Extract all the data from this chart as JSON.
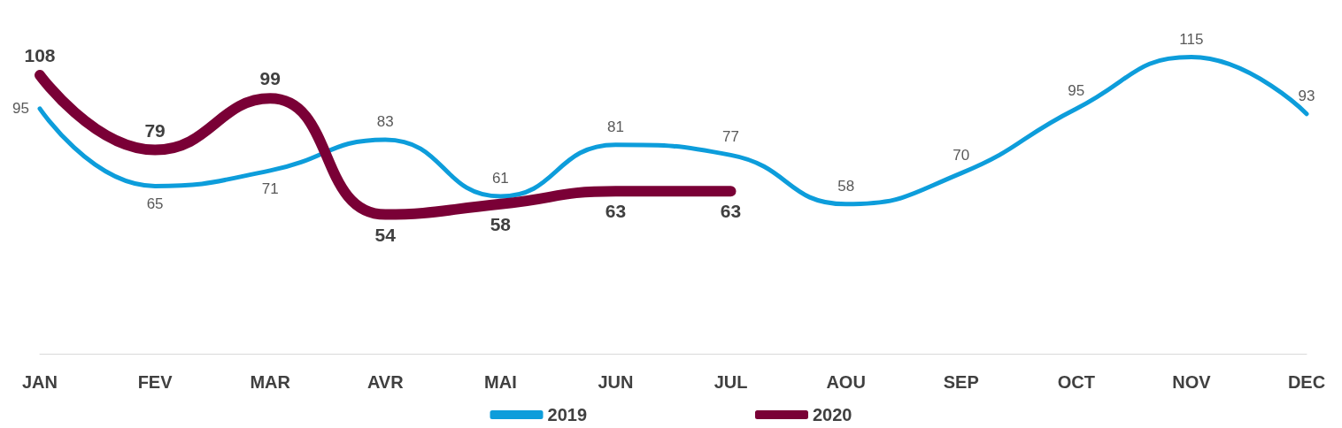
{
  "chart_data": {
    "type": "line",
    "categories": [
      "JAN",
      "FEV",
      "MAR",
      "AVR",
      "MAI",
      "JUN",
      "JUL",
      "AOU",
      "SEP",
      "OCT",
      "NOV",
      "DEC"
    ],
    "series": [
      {
        "name": "2019",
        "color": "#0d9ddb",
        "values": [
          95,
          65,
          71,
          83,
          61,
          81,
          77,
          58,
          70,
          95,
          115,
          93
        ]
      },
      {
        "name": "2020",
        "color": "#7a0036",
        "values": [
          108,
          79,
          99,
          54,
          58,
          63,
          63,
          null,
          null,
          null,
          null,
          null
        ]
      }
    ],
    "tick_labels": "x",
    "data_labels": true,
    "grid": false,
    "legend": "bottom",
    "marker": "none",
    "line_style": "solid"
  }
}
